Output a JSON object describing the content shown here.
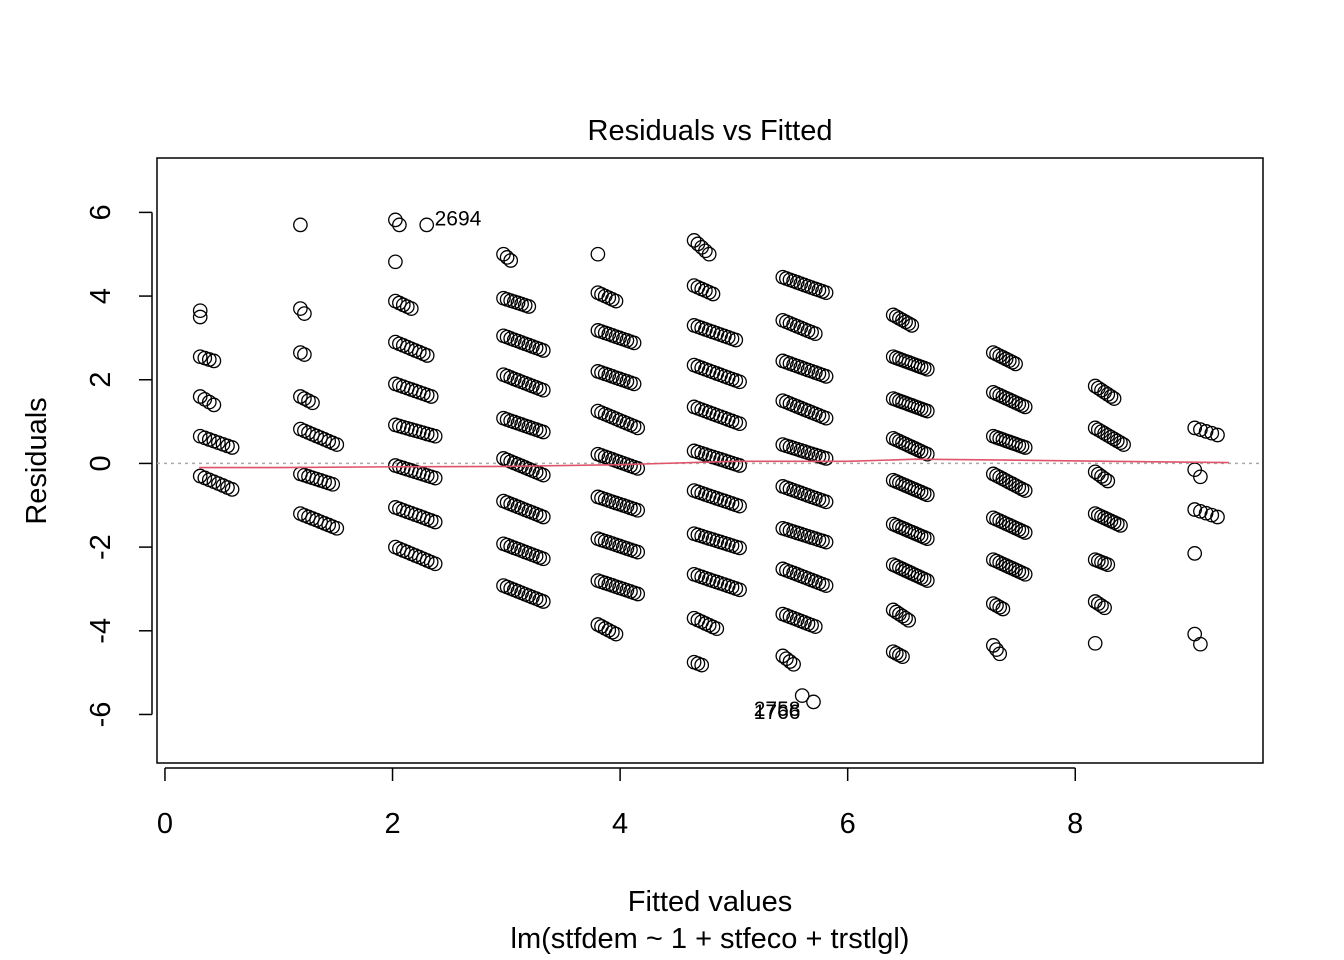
{
  "chart_data": {
    "type": "scatter",
    "title": "Residuals vs Fitted",
    "xlabel": "Fitted values",
    "subtitle": "lm(stfdem ~ 1 + stfeco + trstlgl)",
    "ylabel": "Residuals",
    "xlim": [
      -0.07,
      9.65
    ],
    "ylim": [
      -7.16,
      7.3
    ],
    "xticks": [
      0,
      2,
      4,
      6,
      8
    ],
    "xtick_labels": [
      "0",
      "2",
      "4",
      "6",
      "8"
    ],
    "yticks": [
      -6,
      -4,
      -2,
      0,
      2,
      4,
      6
    ],
    "ytick_labels": [
      "-6",
      "-4",
      "-2",
      "0",
      "2",
      "4",
      "6"
    ],
    "grid": false,
    "reference_line": {
      "y": 0,
      "style": "dotted",
      "color": "#a8a8a8"
    },
    "clusters": [
      {
        "center": 0.45,
        "spread": 0.28,
        "steps": 8,
        "rows": [
          [
            3.65,
            3.65,
            1
          ],
          [
            3.5,
            3.5,
            1
          ],
          [
            2.55,
            2.45,
            4
          ],
          [
            1.6,
            1.4,
            4
          ],
          [
            0.65,
            0.38,
            8
          ],
          [
            -0.3,
            -0.62,
            8
          ]
        ]
      },
      {
        "center": 1.35,
        "spread": 0.32,
        "steps": 10,
        "rows": [
          [
            5.7,
            5.7,
            1
          ],
          [
            3.7,
            3.58,
            2
          ],
          [
            2.65,
            2.6,
            2
          ],
          [
            1.6,
            1.45,
            4
          ],
          [
            0.82,
            0.45,
            10
          ],
          [
            -0.25,
            -0.5,
            9
          ],
          [
            -1.2,
            -1.55,
            10
          ]
        ]
      },
      {
        "center": 2.2,
        "spread": 0.35,
        "steps": 11,
        "rows": [
          [
            5.82,
            5.7,
            2
          ],
          [
            4.82,
            4.82,
            1
          ],
          [
            3.88,
            3.7,
            5
          ],
          [
            2.9,
            2.58,
            9
          ],
          [
            1.9,
            1.6,
            10
          ],
          [
            0.92,
            0.65,
            11
          ],
          [
            -0.05,
            -0.35,
            11
          ],
          [
            -1.05,
            -1.4,
            11
          ],
          [
            -2.0,
            -2.4,
            11
          ]
        ]
      },
      {
        "center": 3.15,
        "spread": 0.35,
        "steps": 12,
        "rows": [
          [
            5.0,
            4.85,
            3
          ],
          [
            3.95,
            3.75,
            8
          ],
          [
            3.05,
            2.7,
            12
          ],
          [
            2.12,
            1.75,
            12
          ],
          [
            1.08,
            0.75,
            12
          ],
          [
            0.12,
            -0.28,
            12
          ],
          [
            -0.9,
            -1.28,
            12
          ],
          [
            -1.92,
            -2.28,
            12
          ],
          [
            -2.92,
            -3.3,
            12
          ]
        ]
      },
      {
        "center": 3.98,
        "spread": 0.35,
        "steps": 12,
        "rows": [
          [
            5.0,
            5.0,
            1
          ],
          [
            4.08,
            3.88,
            6
          ],
          [
            3.18,
            2.88,
            11
          ],
          [
            2.2,
            1.9,
            11
          ],
          [
            1.25,
            0.85,
            12
          ],
          [
            0.22,
            -0.12,
            12
          ],
          [
            -0.8,
            -1.12,
            12
          ],
          [
            -1.8,
            -2.12,
            12
          ],
          [
            -2.8,
            -3.12,
            12
          ],
          [
            -3.85,
            -4.08,
            6
          ]
        ]
      },
      {
        "center": 4.85,
        "spread": 0.4,
        "steps": 13,
        "rows": [
          [
            5.33,
            5.0,
            5
          ],
          [
            4.25,
            4.05,
            6
          ],
          [
            3.3,
            2.95,
            12
          ],
          [
            2.35,
            1.95,
            13
          ],
          [
            1.35,
            0.95,
            13
          ],
          [
            0.3,
            -0.05,
            13
          ],
          [
            -0.65,
            -1.02,
            13
          ],
          [
            -1.68,
            -2.02,
            13
          ],
          [
            -2.65,
            -3.02,
            13
          ],
          [
            -3.7,
            -3.95,
            7
          ],
          [
            -4.75,
            -4.82,
            3
          ]
        ]
      },
      {
        "center": 5.62,
        "spread": 0.38,
        "steps": 13,
        "rows": [
          [
            4.45,
            4.08,
            13
          ],
          [
            3.42,
            3.1,
            10
          ],
          [
            2.45,
            2.08,
            13
          ],
          [
            1.5,
            1.08,
            13
          ],
          [
            0.45,
            0.12,
            13
          ],
          [
            -0.55,
            -0.92,
            13
          ],
          [
            -1.55,
            -1.88,
            13
          ],
          [
            -2.52,
            -2.92,
            13
          ],
          [
            -3.6,
            -3.9,
            10
          ],
          [
            -4.6,
            -4.8,
            4
          ]
        ]
      },
      {
        "center": 6.55,
        "spread": 0.3,
        "steps": 12,
        "rows": [
          [
            3.55,
            3.3,
            7
          ],
          [
            2.55,
            2.25,
            12
          ],
          [
            1.55,
            1.25,
            12
          ],
          [
            0.6,
            0.22,
            12
          ],
          [
            -0.4,
            -0.75,
            12
          ],
          [
            -1.45,
            -1.8,
            12
          ],
          [
            -2.42,
            -2.8,
            12
          ],
          [
            -3.5,
            -3.75,
            6
          ],
          [
            -4.5,
            -4.62,
            4
          ]
        ]
      },
      {
        "center": 7.42,
        "spread": 0.28,
        "steps": 11,
        "rows": [
          [
            2.65,
            2.38,
            8
          ],
          [
            1.7,
            1.35,
            11
          ],
          [
            0.65,
            0.38,
            11
          ],
          [
            -0.25,
            -0.65,
            11
          ],
          [
            -1.3,
            -1.65,
            11
          ],
          [
            -2.3,
            -2.65,
            11
          ],
          [
            -3.35,
            -3.48,
            4
          ],
          [
            -4.35,
            -4.55,
            3
          ]
        ]
      },
      {
        "center": 8.3,
        "spread": 0.25,
        "steps": 10,
        "rows": [
          [
            1.85,
            1.55,
            7
          ],
          [
            0.85,
            0.45,
            10
          ],
          [
            -0.2,
            -0.42,
            5
          ],
          [
            -1.2,
            -1.48,
            9
          ],
          [
            -2.3,
            -2.42,
            5
          ],
          [
            -3.3,
            -3.45,
            4
          ],
          [
            -4.3,
            -4.3,
            1
          ]
        ]
      },
      {
        "center": 9.15,
        "spread": 0.2,
        "steps": 5,
        "rows": [
          [
            0.85,
            0.68,
            5
          ],
          [
            -0.15,
            -0.32,
            2
          ],
          [
            -1.1,
            -1.28,
            5
          ],
          [
            -2.15,
            -2.15,
            1
          ],
          [
            -4.08,
            -4.32,
            2
          ]
        ]
      }
    ],
    "smoother": {
      "color": "#df536b",
      "x": [
        0.3,
        1.0,
        2.0,
        3.0,
        4.0,
        5.0,
        6.0,
        6.6,
        7.4,
        8.3,
        9.35
      ],
      "y": [
        -0.1,
        -0.1,
        -0.08,
        -0.07,
        -0.03,
        0.05,
        0.05,
        0.1,
        0.08,
        0.05,
        0.02
      ]
    },
    "labeled_points": [
      {
        "id": "2694",
        "x": 2.3,
        "y": 5.7,
        "label_x": 2.37,
        "label_y": 5.82,
        "anchor": "start"
      },
      {
        "id": "2758",
        "x": 5.6,
        "y": -5.55,
        "label_x": 5.38,
        "label_y": -5.9,
        "anchor": "middle"
      },
      {
        "id": "1766",
        "x": 5.7,
        "y": -5.7,
        "label_x": 5.38,
        "label_y": -5.98,
        "anchor": "middle"
      }
    ]
  }
}
